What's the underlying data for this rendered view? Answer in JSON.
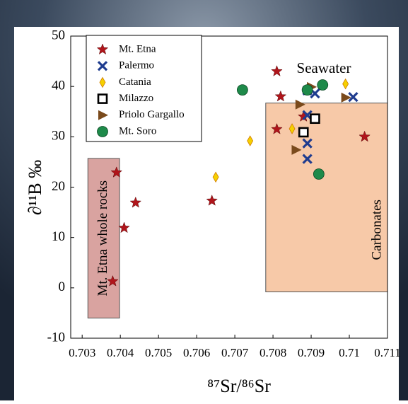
{
  "chart_data": {
    "type": "scatter",
    "xlabel": "⁸⁷Sr/⁸⁶Sr",
    "ylabel": "∂¹¹B ‰",
    "xlim": [
      0.7027,
      0.711
    ],
    "ylim": [
      -10,
      50
    ],
    "xticks": [
      0.703,
      0.704,
      0.705,
      0.706,
      0.707,
      0.708,
      0.709,
      0.71,
      0.711
    ],
    "yticks": [
      -10,
      0,
      10,
      20,
      30,
      40,
      50
    ],
    "legend": "upper left",
    "series": [
      {
        "name": "Mt. Etna",
        "marker": "star",
        "color": "#b0151b",
        "x": [
          0.7038,
          0.7039,
          0.7041,
          0.7044,
          0.7064,
          0.7081,
          0.7082,
          0.7081,
          0.7088,
          0.7104
        ],
        "values": [
          1.3,
          22.9,
          11.9,
          16.9,
          17.3,
          43,
          38,
          31.5,
          34,
          30
        ]
      },
      {
        "name": "Palermo",
        "marker": "x",
        "color": "#1f3c8f",
        "x": [
          0.7089,
          0.7091,
          0.7101,
          0.7089,
          0.7089,
          0.7089
        ],
        "values": [
          39.2,
          38.6,
          37.9,
          28.7,
          25.6,
          34.3
        ]
      },
      {
        "name": "Catania",
        "marker": "diamond",
        "color": "#f5d000",
        "x": [
          0.7065,
          0.7074,
          0.7085,
          0.7099
        ],
        "values": [
          22,
          29.2,
          31.6,
          40.5
        ]
      },
      {
        "name": "Milazzo",
        "marker": "square",
        "color": "#000000",
        "x": [
          0.7088,
          0.7091
        ],
        "values": [
          30.9,
          33.6
        ]
      },
      {
        "name": "Priolo Gargallo",
        "marker": "triangle",
        "color": "#7a4a1c",
        "x": [
          0.7087,
          0.7086,
          0.7099,
          0.709
        ],
        "values": [
          36.4,
          27.4,
          37.8,
          39.9
        ]
      },
      {
        "name": "Mt. Soro",
        "marker": "circle",
        "color": "#1e8a4a",
        "x": [
          0.7072,
          0.7089,
          0.7093,
          0.7092
        ],
        "values": [
          39.3,
          39.3,
          40.3,
          22.6
        ]
      }
    ],
    "regions": [
      {
        "text": "Mt. Etna whole rocks",
        "color": "#d9a3a0",
        "x": [
          0.70315,
          0.70398
        ],
        "y": [
          -6,
          25.7
        ]
      },
      {
        "text": "Carbonates",
        "color": "#f7c9a8",
        "x": [
          0.70781,
          0.711
        ],
        "y": [
          -0.8,
          36.7
        ]
      }
    ],
    "annotation": "Seawater"
  }
}
